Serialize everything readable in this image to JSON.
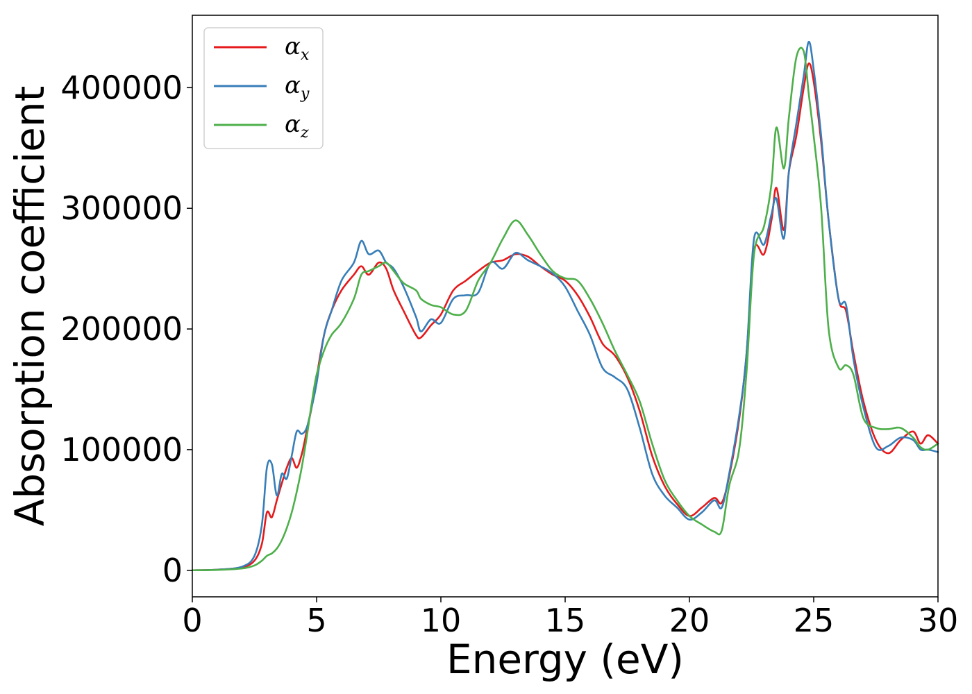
{
  "chart_data": {
    "type": "line",
    "title": "",
    "xlabel": "Energy (eV)",
    "ylabel": "Absorption coefficient",
    "xlim": [
      0,
      30
    ],
    "ylim": [
      -22000,
      460000
    ],
    "xticks": [
      0,
      5,
      10,
      15,
      20,
      25,
      30
    ],
    "yticks": [
      0,
      100000,
      200000,
      300000,
      400000
    ],
    "grid": false,
    "legend_position": "top-left",
    "series": [
      {
        "name": "α",
        "subscript": "x",
        "color": "#e41a1c",
        "x": [
          0,
          1,
          2,
          2.5,
          2.8,
          3.0,
          3.2,
          3.4,
          3.6,
          3.8,
          4.0,
          4.2,
          4.4,
          4.6,
          4.8,
          5.0,
          5.3,
          5.6,
          6.0,
          6.5,
          6.8,
          7.1,
          7.5,
          7.8,
          8.1,
          8.5,
          9.0,
          9.2,
          9.6,
          10.0,
          10.5,
          11.0,
          11.5,
          12.0,
          12.5,
          13.0,
          13.5,
          14.0,
          14.5,
          15.0,
          15.5,
          16.0,
          16.5,
          17.0,
          17.5,
          18.0,
          18.5,
          19.0,
          19.5,
          20.0,
          20.5,
          21.0,
          21.3,
          21.6,
          22.0,
          22.3,
          22.6,
          23.0,
          23.3,
          23.5,
          23.8,
          24.0,
          24.3,
          24.6,
          24.8,
          25.0,
          25.3,
          25.6,
          26.0,
          26.3,
          26.6,
          27.0,
          27.5,
          28.0,
          28.5,
          29.0,
          29.3,
          29.6,
          30.0
        ],
        "y": [
          0,
          500,
          2500,
          8000,
          22000,
          48000,
          44000,
          58000,
          72000,
          85000,
          93000,
          85000,
          96000,
          115000,
          135000,
          160000,
          195000,
          215000,
          232000,
          245000,
          252000,
          245000,
          255000,
          250000,
          232000,
          215000,
          195000,
          193000,
          203000,
          212000,
          232000,
          240000,
          248000,
          255000,
          257000,
          262000,
          260000,
          252000,
          245000,
          240000,
          228000,
          210000,
          188000,
          178000,
          160000,
          132000,
          95000,
          70000,
          55000,
          45000,
          52000,
          60000,
          56000,
          78000,
          125000,
          180000,
          265000,
          262000,
          290000,
          317000,
          282000,
          330000,
          360000,
          400000,
          420000,
          405000,
          355000,
          290000,
          225000,
          215000,
          180000,
          140000,
          108000,
          97000,
          108000,
          115000,
          105000,
          112000,
          105000
        ]
      },
      {
        "name": "α",
        "subscript": "y",
        "color": "#377eb8",
        "x": [
          0,
          1,
          2,
          2.5,
          2.8,
          3.0,
          3.2,
          3.4,
          3.6,
          3.8,
          4.0,
          4.2,
          4.4,
          4.6,
          4.8,
          5.0,
          5.3,
          5.6,
          6.0,
          6.5,
          6.8,
          7.1,
          7.5,
          7.8,
          8.1,
          8.5,
          9.0,
          9.2,
          9.6,
          10.0,
          10.5,
          11.0,
          11.5,
          12.0,
          12.5,
          13.0,
          13.5,
          14.0,
          14.5,
          15.0,
          15.5,
          16.0,
          16.5,
          17.0,
          17.5,
          18.0,
          18.5,
          19.0,
          19.5,
          20.0,
          20.5,
          21.0,
          21.3,
          21.6,
          22.0,
          22.3,
          22.6,
          23.0,
          23.3,
          23.5,
          23.8,
          24.0,
          24.3,
          24.6,
          24.8,
          25.0,
          25.3,
          25.6,
          26.0,
          26.3,
          26.6,
          27.0,
          27.5,
          28.0,
          28.5,
          29.0,
          29.3,
          29.6,
          30.0
        ],
        "y": [
          0,
          500,
          3000,
          12000,
          38000,
          85000,
          88000,
          62000,
          80000,
          76000,
          95000,
          115000,
          113000,
          118000,
          135000,
          155000,
          195000,
          215000,
          240000,
          255000,
          273000,
          262000,
          265000,
          255000,
          250000,
          235000,
          210000,
          198000,
          208000,
          205000,
          225000,
          228000,
          230000,
          255000,
          250000,
          263000,
          257000,
          252000,
          246000,
          235000,
          215000,
          195000,
          168000,
          160000,
          150000,
          118000,
          80000,
          62000,
          52000,
          42000,
          48000,
          58000,
          52000,
          80000,
          128000,
          180000,
          275000,
          270000,
          295000,
          308000,
          275000,
          330000,
          370000,
          410000,
          438000,
          415000,
          360000,
          290000,
          225000,
          220000,
          175000,
          135000,
          102000,
          103000,
          110000,
          108000,
          100000,
          100000,
          98000
        ]
      },
      {
        "name": "α",
        "subscript": "z",
        "color": "#4daf4a",
        "x": [
          0,
          1,
          2,
          2.5,
          2.8,
          3.0,
          3.2,
          3.4,
          3.6,
          3.8,
          4.0,
          4.2,
          4.4,
          4.6,
          4.8,
          5.0,
          5.3,
          5.6,
          6.0,
          6.5,
          6.8,
          7.1,
          7.5,
          7.8,
          8.1,
          8.5,
          9.0,
          9.2,
          9.6,
          10.0,
          10.5,
          11.0,
          11.5,
          12.0,
          12.5,
          13.0,
          13.5,
          14.0,
          14.5,
          15.0,
          15.5,
          16.0,
          16.5,
          17.0,
          17.5,
          18.0,
          18.5,
          19.0,
          19.5,
          20.0,
          20.5,
          21.0,
          21.3,
          21.6,
          22.0,
          22.3,
          22.6,
          23.0,
          23.3,
          23.5,
          23.8,
          24.0,
          24.3,
          24.6,
          24.8,
          25.0,
          25.3,
          25.6,
          26.0,
          26.3,
          26.6,
          27.0,
          27.5,
          28.0,
          28.5,
          29.0,
          29.3,
          29.6,
          30.0
        ],
        "y": [
          0,
          300,
          1500,
          4000,
          8000,
          12000,
          14000,
          18000,
          25000,
          35000,
          48000,
          65000,
          85000,
          110000,
          138000,
          162000,
          182000,
          195000,
          205000,
          225000,
          245000,
          248000,
          252000,
          255000,
          248000,
          238000,
          232000,
          225000,
          220000,
          218000,
          212000,
          215000,
          240000,
          255000,
          275000,
          290000,
          278000,
          262000,
          248000,
          242000,
          240000,
          225000,
          205000,
          182000,
          162000,
          140000,
          105000,
          75000,
          58000,
          45000,
          38000,
          32000,
          33000,
          70000,
          100000,
          165000,
          262000,
          285000,
          320000,
          367000,
          333000,
          375000,
          425000,
          430000,
          395000,
          360000,
          300000,
          200000,
          168000,
          170000,
          162000,
          126000,
          118000,
          117000,
          118000,
          110000,
          102000,
          100000,
          105000
        ]
      }
    ]
  }
}
